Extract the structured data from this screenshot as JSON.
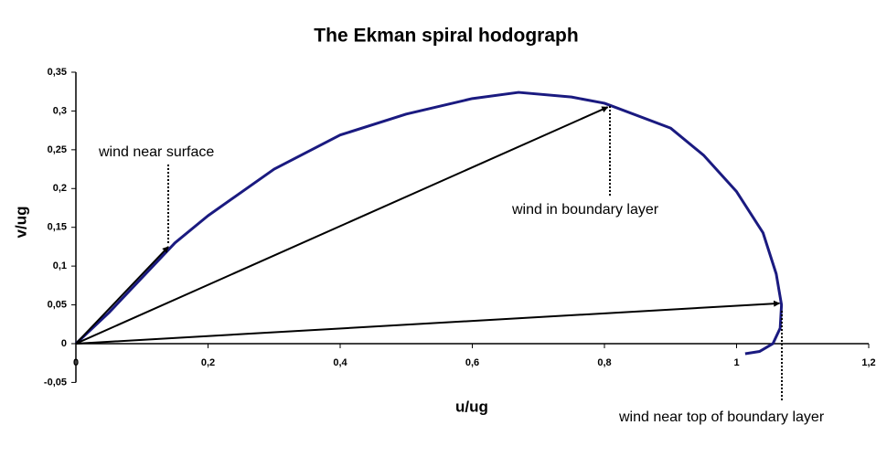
{
  "chart_data": {
    "type": "line",
    "title": "The Ekman spiral hodograph",
    "x_label": "u/ug",
    "y_label": "v/ug",
    "x": [
      0,
      0.05,
      0.1,
      0.15,
      0.2,
      0.3,
      0.4,
      0.5,
      0.6,
      0.67,
      0.75,
      0.8,
      0.9,
      0.95,
      1.0,
      1.04,
      1.06,
      1.068,
      1.066,
      1.055,
      1.035,
      1.013
    ],
    "values": [
      0,
      0.04,
      0.085,
      0.13,
      0.165,
      0.225,
      0.269,
      0.296,
      0.316,
      0.324,
      0.318,
      0.31,
      0.278,
      0.243,
      0.196,
      0.143,
      0.09,
      0.05,
      0.02,
      0.0,
      -0.01,
      -0.013
    ],
    "color": "#1a1a80",
    "vectors": {
      "u": [
        0.14,
        0.805,
        1.065
      ],
      "v": [
        0.125,
        0.305,
        0.052
      ],
      "color": "#000000"
    },
    "annotations": [
      "wind near surface",
      "wind in boundary layer",
      "wind near top of boundary layer"
    ],
    "xlim": [
      0,
      1.2
    ],
    "ylim": [
      -0.05,
      0.35
    ],
    "xticks": [
      0,
      {
        "value": 0.2,
        "label": "0,2"
      },
      {
        "value": 0.4,
        "label": "0,4"
      },
      {
        "value": 0.6,
        "label": "0,6"
      },
      {
        "value": 0.8,
        "label": "0,8"
      },
      1,
      {
        "value": 1.2,
        "label": "1,2"
      }
    ],
    "yticks": [
      {
        "value": -0.05,
        "label": "-0,05"
      },
      0,
      {
        "value": 0.05,
        "label": "0,05"
      },
      {
        "value": 0.1,
        "label": "0,1"
      },
      {
        "value": 0.15,
        "label": "0,15"
      },
      {
        "value": 0.2,
        "label": "0,2"
      },
      {
        "value": 0.25,
        "label": "0,25"
      },
      {
        "value": 0.3,
        "label": "0,3"
      },
      {
        "value": 0.35,
        "label": "0,35"
      }
    ],
    "grid": false
  }
}
